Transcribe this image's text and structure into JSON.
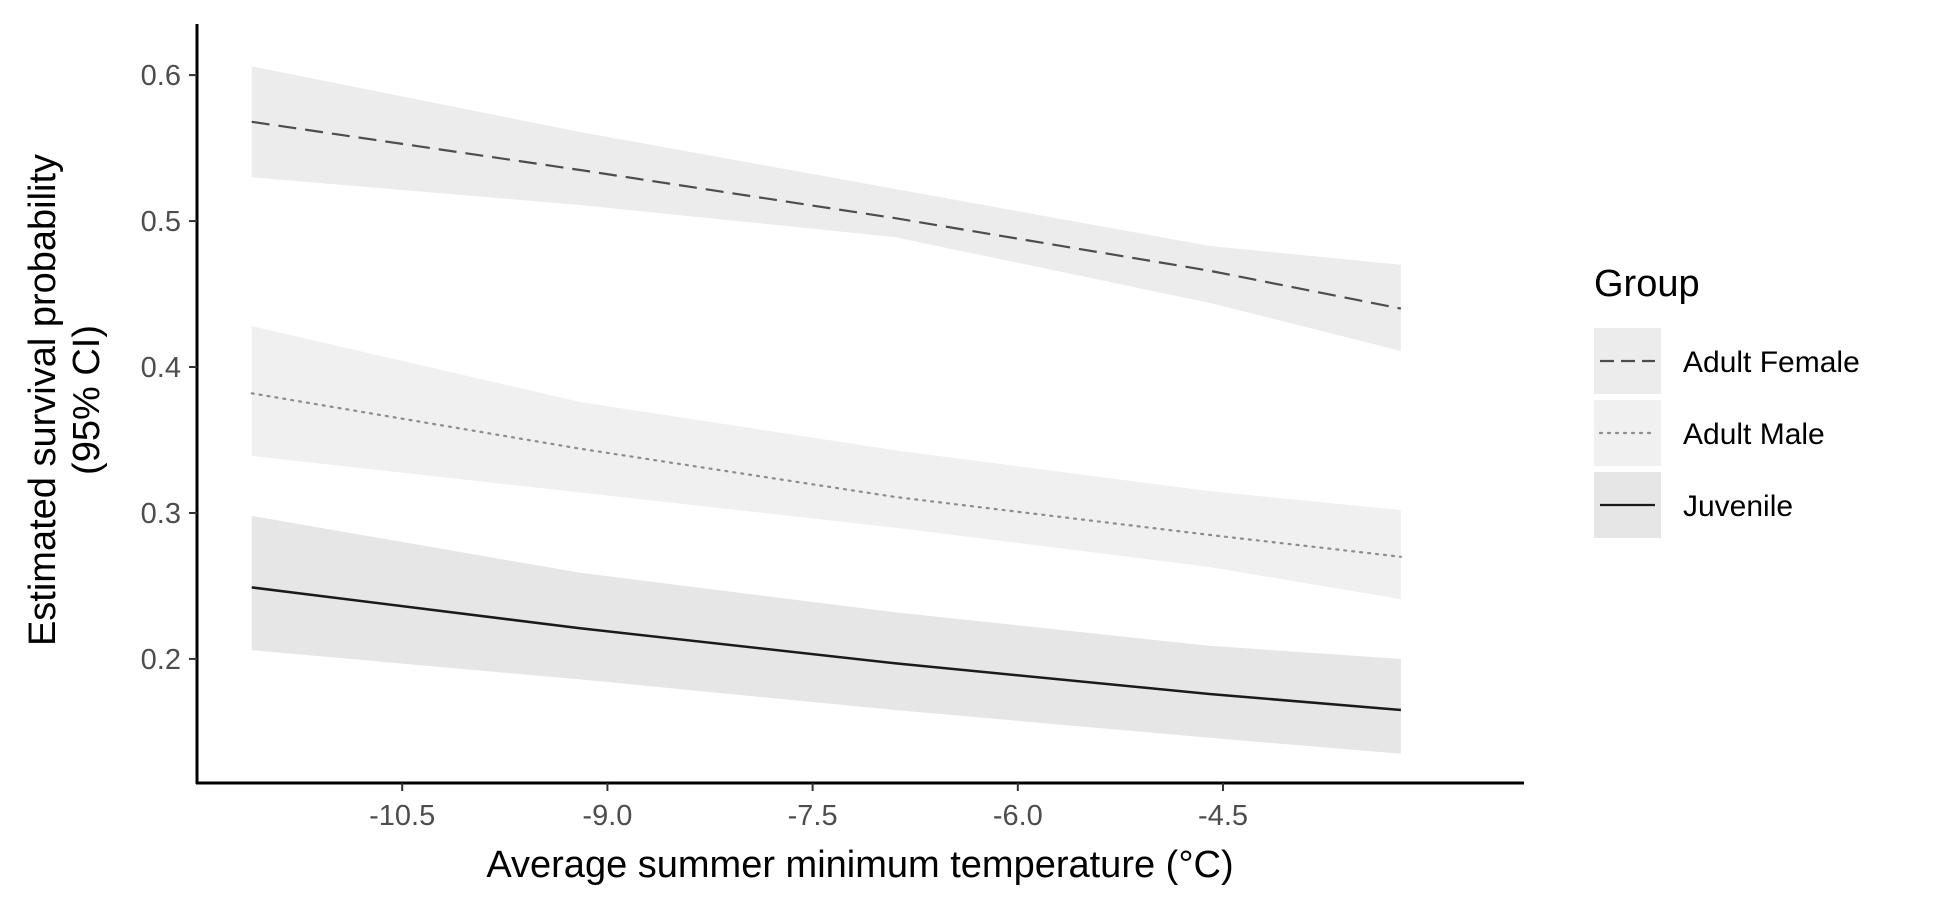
{
  "chart_data": {
    "type": "line",
    "xlabel": "Average summer minimum temperature (°C)",
    "ylabel_lines": [
      "Estimated survival probability",
      "(95% CI)"
    ],
    "xlim": [
      -12.0,
      -2.3
    ],
    "ylim": [
      0.115,
      0.635
    ],
    "x_ticks": [
      -10.5,
      -9.0,
      -7.5,
      -6.0,
      -4.5
    ],
    "x_tick_labels": [
      "-10.5",
      "-9.0",
      "-7.5",
      "-6.0",
      "-4.5"
    ],
    "y_ticks": [
      0.2,
      0.3,
      0.4,
      0.5,
      0.6
    ],
    "y_tick_labels": [
      "0.2",
      "0.3",
      "0.4",
      "0.5",
      "0.6"
    ],
    "grid": false,
    "legend": {
      "title": "Group",
      "placement": "right",
      "items": [
        "Adult Female",
        "Adult Male",
        "Juvenile"
      ]
    },
    "series": [
      {
        "name": "Adult Female",
        "line_style": "dashed",
        "line_color": "#4d4d4d",
        "ribbon_color": "#ececec",
        "x": [
          -11.6,
          -9.2,
          -6.9,
          -4.6,
          -3.2
        ],
        "y": [
          0.568,
          0.535,
          0.502,
          0.466,
          0.44
        ],
        "lower": [
          0.53,
          0.511,
          0.489,
          0.444,
          0.411
        ],
        "upper": [
          0.606,
          0.561,
          0.522,
          0.483,
          0.47
        ]
      },
      {
        "name": "Adult Male",
        "line_style": "dotted",
        "line_color": "#8c8c8c",
        "ribbon_color": "#f0f0f0",
        "x": [
          -11.6,
          -9.2,
          -6.9,
          -4.6,
          -3.2
        ],
        "y": [
          0.382,
          0.344,
          0.311,
          0.285,
          0.27
        ],
        "lower": [
          0.339,
          0.314,
          0.29,
          0.263,
          0.241
        ],
        "upper": [
          0.428,
          0.376,
          0.343,
          0.315,
          0.302
        ]
      },
      {
        "name": "Juvenile",
        "line_style": "solid",
        "line_color": "#1a1a1a",
        "ribbon_color": "#e6e6e6",
        "x": [
          -11.6,
          -9.2,
          -6.9,
          -4.6,
          -3.2
        ],
        "y": [
          0.249,
          0.221,
          0.197,
          0.176,
          0.165
        ],
        "lower": [
          0.206,
          0.186,
          0.165,
          0.146,
          0.135
        ],
        "upper": [
          0.298,
          0.259,
          0.232,
          0.209,
          0.2
        ]
      }
    ]
  }
}
